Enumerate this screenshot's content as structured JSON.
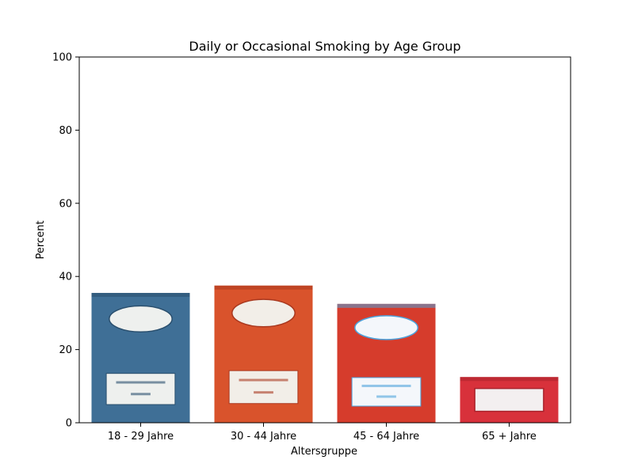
{
  "chart_data": {
    "type": "bar",
    "title": "Daily or Occasional Smoking by Age Group",
    "xlabel": "Altersgruppe",
    "ylabel": "Percent",
    "categories": [
      "18 - 29 Jahre",
      "30 - 44 Jahre",
      "45 - 64 Jahre",
      "65 + Jahre"
    ],
    "values": [
      35.5,
      37.5,
      32.5,
      12.5
    ],
    "ylim": [
      0,
      100
    ],
    "yticks": [
      0,
      20,
      40,
      60,
      80,
      100
    ],
    "grid": false,
    "legend": "none",
    "bar_fill": "cigarette-pack-image",
    "bar_colors": [
      "#3f6f96",
      "#d9532c",
      "#d63c2c",
      "#d8313b"
    ],
    "bar_label_colors": [
      "#eef0ee",
      "#f2eee8",
      "#f4f7fb",
      "#f3eff0"
    ],
    "bar_accent_colors": [
      "#2a4f6e",
      "#a9381f",
      "#4da3dc",
      "#a9222b"
    ]
  }
}
